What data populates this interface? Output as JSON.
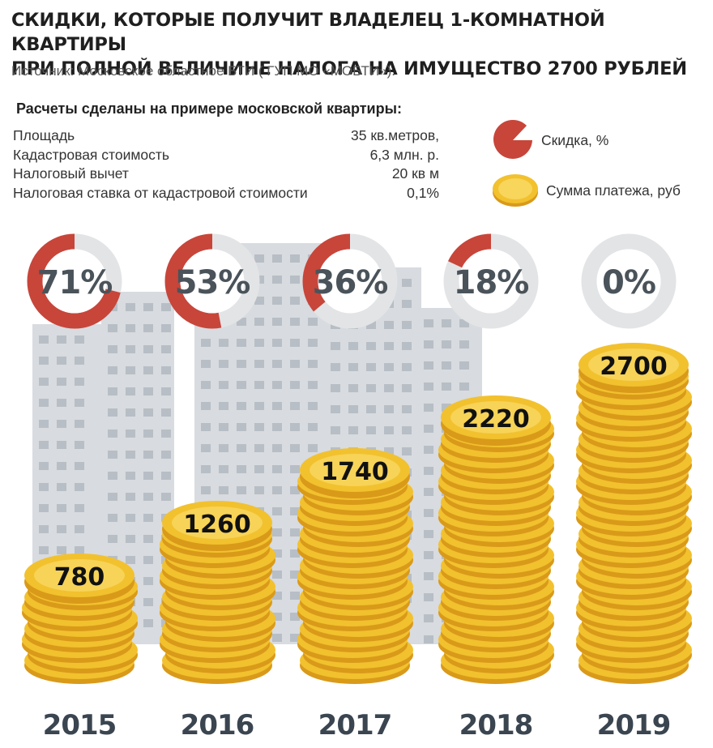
{
  "header": {
    "title_line1": "СКИДКИ, КОТОРЫЕ ПОЛУЧИТ ВЛАДЕЛЕЦ 1-КОМНАТНОЙ КВАРТИРЫ",
    "title_line2": "ПРИ ПОЛНОЙ ВЕЛИЧИНЕ НАЛОГА НА ИМУЩЕСТВО 2700 РУБЛЕЙ",
    "source": "Источник: Московское областное БТИ ( ГУП МО «МОБТИ»)."
  },
  "calc": {
    "heading": "Расчеты сделаны на примере московской квартиры:",
    "rows": [
      {
        "label": "Площадь",
        "value": "35 кв.метров,"
      },
      {
        "label": "Кадастровая стоимость",
        "value": "6,3 млн. р."
      },
      {
        "label": "Налоговый вычет",
        "value": "20 кв м"
      },
      {
        "label": "Налоговая ставка от кадастровой стоимости",
        "value": "0,1%"
      }
    ]
  },
  "legend": {
    "discount": "Скидка, %",
    "payment": "Сумма платежа, руб"
  },
  "colors": {
    "red": "#c8453a",
    "ring_gray": "#e3e4e6",
    "percent_text": "#4a535a",
    "gold": "#f2c12e",
    "gold_dark": "#d99a1a",
    "gold_light": "#fbe27a",
    "year_text": "#3a4550",
    "building": "#d8dbdf"
  },
  "chart_data": {
    "type": "bar",
    "title": "СКИДКИ, КОТОРЫЕ ПОЛУЧИТ ВЛАДЕЛЕЦ 1-КОМНАТНОЙ КВАРТИРЫ ПРИ ПОЛНОЙ ВЕЛИЧИНЕ НАЛОГА НА ИМУЩЕСТВО 2700 РУБЛЕЙ",
    "categories": [
      "2015",
      "2016",
      "2017",
      "2018",
      "2019"
    ],
    "series": [
      {
        "name": "Сумма платежа, руб",
        "values": [
          780,
          1260,
          1740,
          2220,
          2700
        ]
      },
      {
        "name": "Скидка, %",
        "values": [
          71,
          53,
          36,
          18,
          0
        ]
      }
    ],
    "value_labels": [
      "780",
      "1260",
      "1740",
      "2220",
      "2700"
    ],
    "percent_labels": [
      "71%",
      "53%",
      "36%",
      "18%",
      "0%"
    ],
    "ylim": [
      0,
      2700
    ]
  }
}
